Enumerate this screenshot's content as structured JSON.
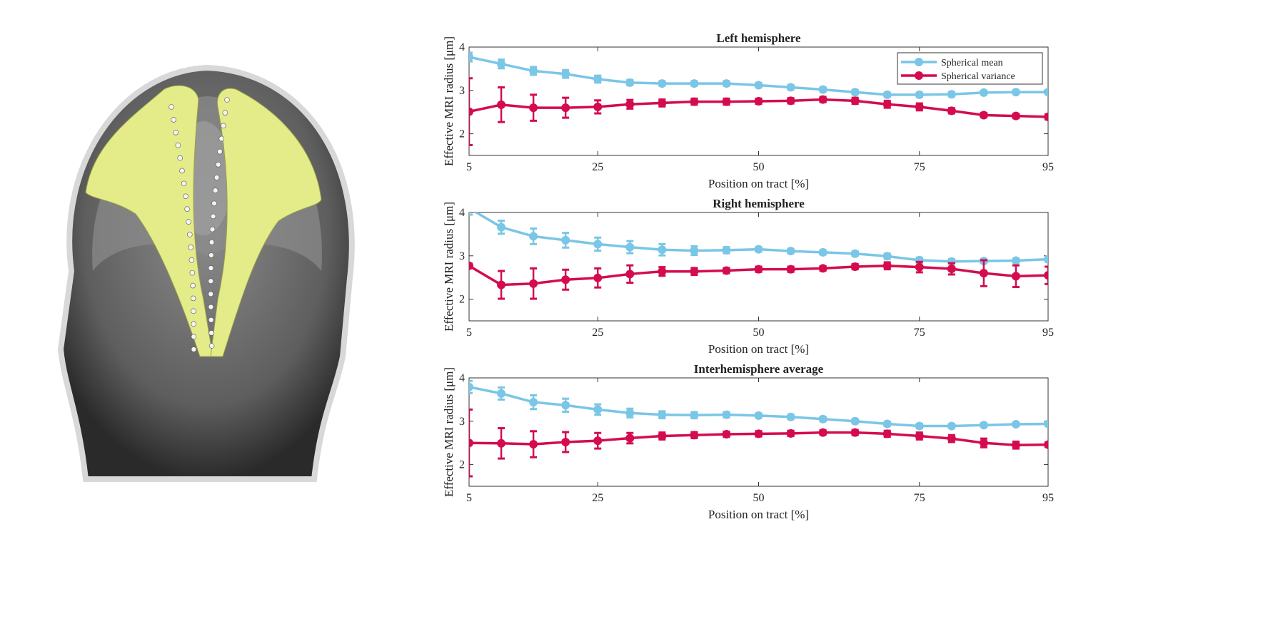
{
  "image": {
    "description_icon": "brain-mri-tractography"
  },
  "colors": {
    "mean": "#7ac6e6",
    "variance": "#d40c4e",
    "fibers": "#e4ec8a"
  },
  "chart_data": [
    {
      "type": "line",
      "title": "Left hemisphere",
      "xlabel": "Position on tract [%]",
      "ylabel": "Effective MRI radius [μm]",
      "xlim": [
        5,
        95
      ],
      "ylim": [
        1.5,
        4
      ],
      "xticks": [
        "5",
        "25",
        "50",
        "75",
        "95"
      ],
      "yticks": [
        "2",
        "3",
        "4"
      ],
      "legend": "top-right",
      "x": [
        5,
        10,
        15,
        20,
        25,
        30,
        35,
        40,
        45,
        50,
        55,
        60,
        65,
        70,
        75,
        80,
        85,
        90,
        95
      ],
      "series": [
        {
          "name": "Spherical mean",
          "values": [
            3.77,
            3.61,
            3.45,
            3.38,
            3.26,
            3.18,
            3.16,
            3.16,
            3.16,
            3.12,
            3.07,
            3.02,
            2.96,
            2.9,
            2.9,
            2.91,
            2.95,
            2.96,
            2.96
          ],
          "error": [
            0.1,
            0.1,
            0.09,
            0.09,
            0.08,
            0.06,
            0.05,
            0.05,
            0.05,
            0.05,
            0.05,
            0.05,
            0.05,
            0.05,
            0.05,
            0.05,
            0.04,
            0.04,
            0.04
          ]
        },
        {
          "name": "Spherical variance",
          "values": [
            2.51,
            2.67,
            2.6,
            2.6,
            2.62,
            2.68,
            2.71,
            2.74,
            2.74,
            2.75,
            2.76,
            2.79,
            2.76,
            2.68,
            2.62,
            2.53,
            2.43,
            2.41,
            2.39
          ],
          "error": [
            0.77,
            0.4,
            0.3,
            0.23,
            0.15,
            0.1,
            0.08,
            0.07,
            0.07,
            0.06,
            0.06,
            0.06,
            0.07,
            0.08,
            0.08,
            0.06,
            0.05,
            0.05,
            0.06
          ]
        }
      ]
    },
    {
      "type": "line",
      "title": "Right hemisphere",
      "xlabel": "Position on tract [%]",
      "ylabel": "Effective MRI radius [μm]",
      "xlim": [
        5,
        95
      ],
      "ylim": [
        1.5,
        4
      ],
      "xticks": [
        "5",
        "25",
        "50",
        "75",
        "95"
      ],
      "yticks": [
        "2",
        "3",
        "4"
      ],
      "x": [
        5,
        10,
        15,
        20,
        25,
        30,
        35,
        40,
        45,
        50,
        55,
        60,
        65,
        70,
        75,
        80,
        85,
        90,
        95
      ],
      "series": [
        {
          "name": "Spherical mean",
          "values": [
            4.1,
            3.66,
            3.45,
            3.36,
            3.27,
            3.2,
            3.14,
            3.12,
            3.13,
            3.15,
            3.11,
            3.08,
            3.05,
            2.99,
            2.9,
            2.87,
            2.88,
            2.89,
            2.92
          ],
          "error": [
            0.15,
            0.15,
            0.18,
            0.17,
            0.15,
            0.14,
            0.13,
            0.1,
            0.07,
            0.05,
            0.05,
            0.05,
            0.05,
            0.06,
            0.06,
            0.05,
            0.04,
            0.04,
            0.05
          ]
        },
        {
          "name": "Spherical variance",
          "values": [
            2.77,
            2.33,
            2.36,
            2.45,
            2.49,
            2.58,
            2.64,
            2.64,
            2.66,
            2.69,
            2.69,
            2.71,
            2.75,
            2.77,
            2.74,
            2.7,
            2.6,
            2.53,
            2.55
          ],
          "error": [
            0.05,
            0.32,
            0.35,
            0.23,
            0.22,
            0.2,
            0.1,
            0.08,
            0.06,
            0.06,
            0.06,
            0.05,
            0.06,
            0.08,
            0.12,
            0.13,
            0.3,
            0.25,
            0.2
          ]
        }
      ]
    },
    {
      "type": "line",
      "title": "Interhemisphere average",
      "xlabel": "Position on tract [%]",
      "ylabel": "Effective MRI radius [μm]",
      "xlim": [
        5,
        95
      ],
      "ylim": [
        1.5,
        4
      ],
      "xticks": [
        "5",
        "25",
        "50",
        "75",
        "95"
      ],
      "yticks": [
        "2",
        "3",
        "4"
      ],
      "x": [
        5,
        10,
        15,
        20,
        25,
        30,
        35,
        40,
        45,
        50,
        55,
        60,
        65,
        70,
        75,
        80,
        85,
        90,
        95
      ],
      "series": [
        {
          "name": "Spherical mean",
          "values": [
            3.79,
            3.64,
            3.44,
            3.37,
            3.27,
            3.19,
            3.15,
            3.14,
            3.15,
            3.13,
            3.1,
            3.05,
            3.0,
            2.94,
            2.89,
            2.89,
            2.91,
            2.93,
            2.94
          ],
          "error": [
            0.14,
            0.14,
            0.16,
            0.15,
            0.12,
            0.1,
            0.08,
            0.07,
            0.06,
            0.05,
            0.05,
            0.05,
            0.05,
            0.05,
            0.05,
            0.04,
            0.04,
            0.04,
            0.04
          ]
        },
        {
          "name": "Spherical variance",
          "values": [
            2.5,
            2.49,
            2.47,
            2.52,
            2.55,
            2.61,
            2.66,
            2.68,
            2.7,
            2.71,
            2.72,
            2.74,
            2.74,
            2.71,
            2.66,
            2.6,
            2.5,
            2.45,
            2.46
          ],
          "error": [
            0.77,
            0.35,
            0.3,
            0.23,
            0.18,
            0.12,
            0.08,
            0.07,
            0.06,
            0.06,
            0.06,
            0.05,
            0.06,
            0.07,
            0.08,
            0.08,
            0.1,
            0.08,
            0.05
          ]
        }
      ]
    }
  ]
}
